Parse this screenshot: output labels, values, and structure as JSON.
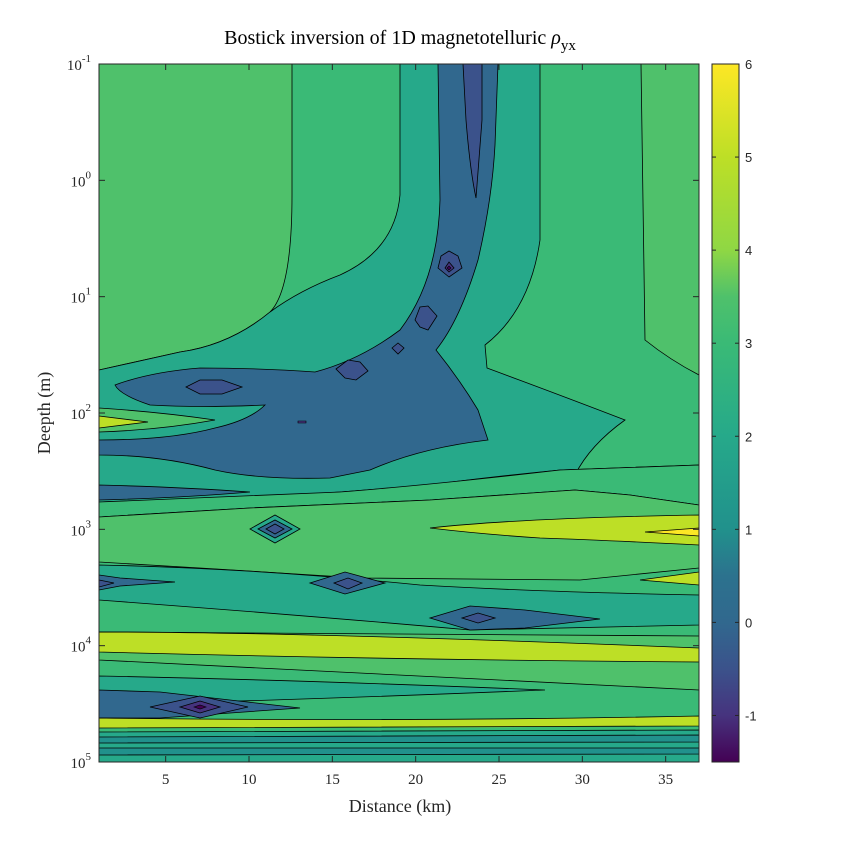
{
  "chart_data": {
    "type": "heatmap",
    "subtype": "filled-contour",
    "title": {
      "main": "Bostick inversion of 1D magnetotelluric ",
      "symbol": "ρ",
      "subscript": "yx"
    },
    "xlabel": "Distance (km)",
    "ylabel": "Deepth (m)",
    "xlim": [
      1,
      37
    ],
    "ylim_log10": [
      -1,
      5
    ],
    "y_scale": "log",
    "y_direction": "reversed",
    "x_ticks": [
      5,
      10,
      15,
      20,
      25,
      30,
      35
    ],
    "y_ticks": [
      {
        "base": "10",
        "exp": "-1",
        "log10": -1
      },
      {
        "base": "10",
        "exp": "0",
        "log10": 0
      },
      {
        "base": "10",
        "exp": "1",
        "log10": 1
      },
      {
        "base": "10",
        "exp": "2",
        "log10": 2
      },
      {
        "base": "10",
        "exp": "3",
        "log10": 3
      },
      {
        "base": "10",
        "exp": "4",
        "log10": 4
      },
      {
        "base": "10",
        "exp": "5",
        "log10": 5
      }
    ],
    "colorbar": {
      "range": [
        -1.5,
        6
      ],
      "ticks": [
        -1,
        0,
        1,
        2,
        3,
        4,
        5,
        6
      ],
      "colormap": "parula",
      "level_colors": {
        "-1.5": "#440154",
        "-1": "#46337e",
        "-0.5": "#3b528b",
        "0": "#31688e",
        "0.5": "#2c728e",
        "1": "#21918c",
        "2": "#26a98a",
        "3": "#3aba76",
        "3.5": "#4fc16b",
        "4": "#8fd744",
        "5": "#bddf26",
        "6": "#fde725"
      }
    },
    "contour_levels": [
      -1.5,
      -1,
      -0.5,
      0,
      0.5,
      1,
      2,
      3,
      3.5,
      4,
      5
    ],
    "features": [
      {
        "kind": "channel",
        "x_center": 22,
        "depth_from": 0.1,
        "depth_to": 20,
        "value": 0
      },
      {
        "kind": "low-resistivity zone",
        "x_range": [
          3,
          25
        ],
        "depth_range": [
          40,
          300
        ],
        "value": 0.5
      },
      {
        "kind": "minimum",
        "x": 22,
        "depth": 7,
        "value": -1.5
      },
      {
        "kind": "minimum",
        "x": 11.5,
        "depth": 1000,
        "value": -1
      },
      {
        "kind": "minimum",
        "x": 16,
        "depth": 3000,
        "value": -0.5
      },
      {
        "kind": "minimum",
        "x": 23.5,
        "depth": 6000,
        "value": -0.5
      },
      {
        "kind": "minimum",
        "x": 7,
        "depth": 35000,
        "value": -1
      },
      {
        "kind": "high band",
        "depth": 10000,
        "value": 5
      },
      {
        "kind": "high band",
        "depth": 2000,
        "value": 5
      }
    ]
  }
}
